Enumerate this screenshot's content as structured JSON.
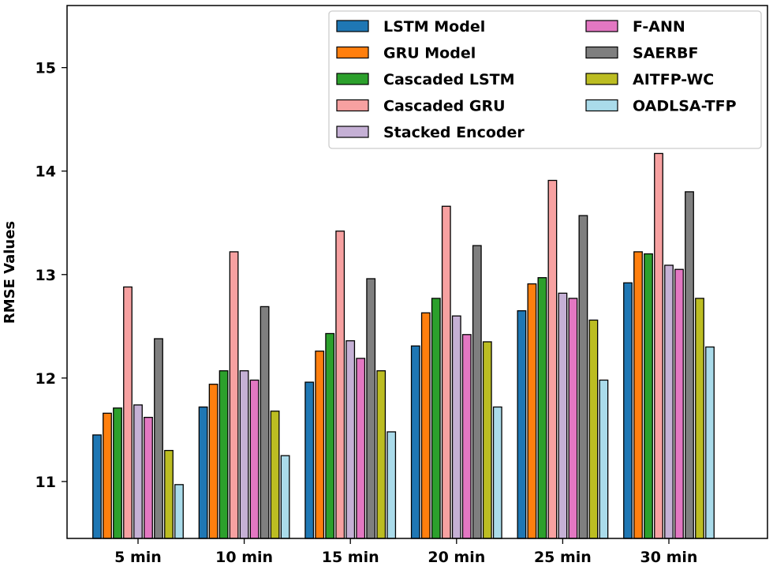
{
  "chart_data": {
    "type": "bar",
    "title": "",
    "xlabel": "",
    "ylabel": "RMSE Values",
    "ylim": [
      10.45,
      15.6
    ],
    "yticks": [
      11,
      12,
      13,
      14,
      15
    ],
    "ytick_labels": [
      "11",
      "12",
      "13",
      "14",
      "15"
    ],
    "grid": false,
    "legend_position": "top-right",
    "categories": [
      "5 min",
      "10 min",
      "15 min",
      "20 min",
      "25 min",
      "30 min"
    ],
    "series": [
      {
        "name": "LSTM Model",
        "color": "#1f77b4",
        "values": [
          11.45,
          11.72,
          11.96,
          12.31,
          12.65,
          12.92
        ]
      },
      {
        "name": "GRU Model",
        "color": "#ff7f0e",
        "values": [
          11.66,
          11.94,
          12.26,
          12.63,
          12.91,
          13.22
        ]
      },
      {
        "name": "Cascaded LSTM",
        "color": "#2ca02c",
        "values": [
          11.71,
          12.07,
          12.43,
          12.77,
          12.97,
          13.2
        ]
      },
      {
        "name": "Cascaded GRU",
        "color": "#f7a1a1",
        "values": [
          12.88,
          13.22,
          13.42,
          13.66,
          13.91,
          14.17
        ]
      },
      {
        "name": "Stacked Encoder",
        "color": "#c5b0d5",
        "values": [
          11.74,
          12.07,
          12.36,
          12.6,
          12.82,
          13.09
        ]
      },
      {
        "name": "F-ANN",
        "color": "#e377c2",
        "values": [
          11.62,
          11.98,
          12.19,
          12.42,
          12.77,
          13.05
        ]
      },
      {
        "name": "SAERBF",
        "color": "#7f7f7f",
        "values": [
          12.38,
          12.69,
          12.96,
          13.28,
          13.57,
          13.8
        ]
      },
      {
        "name": "AITFP-WC",
        "color": "#bcbd22",
        "values": [
          11.3,
          11.68,
          12.07,
          12.35,
          12.56,
          12.77
        ]
      },
      {
        "name": "OADLSA-TFP",
        "color": "#aadbea",
        "values": [
          10.97,
          11.25,
          11.48,
          11.72,
          11.98,
          12.3
        ]
      }
    ]
  }
}
